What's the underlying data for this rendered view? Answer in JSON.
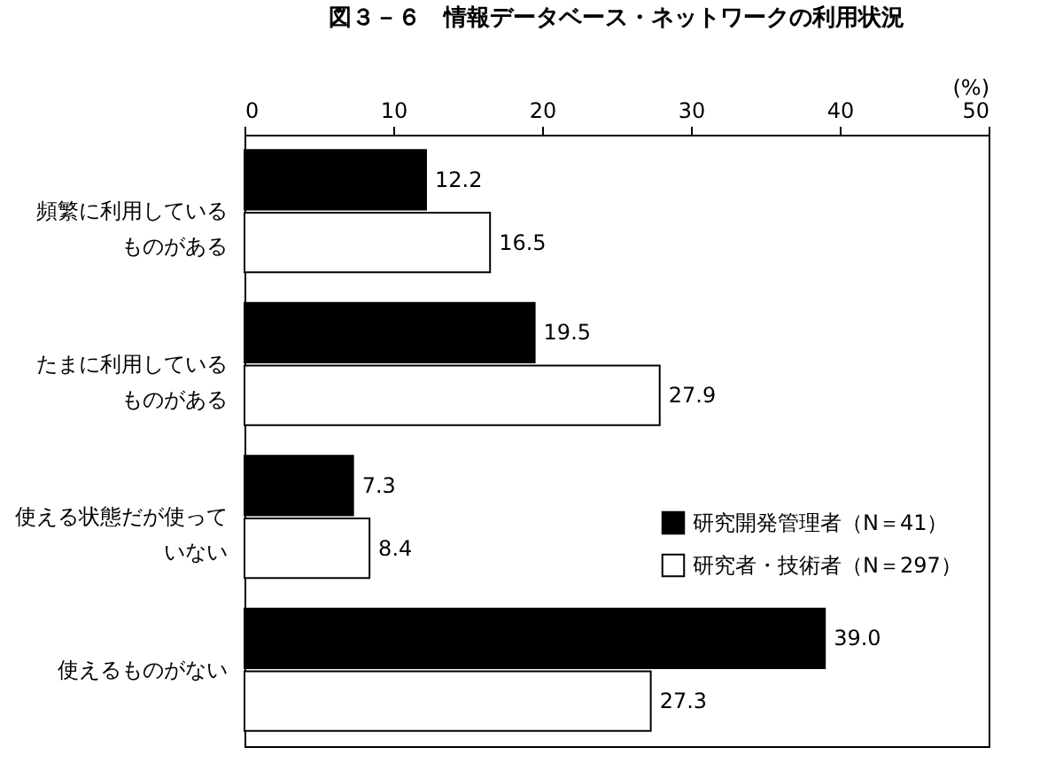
{
  "chart_data": {
    "type": "bar",
    "orientation": "horizontal",
    "title": "図３－６　情報データベース・ネットワークの利用状況",
    "xlabel": "(%)",
    "categories": [
      "頻繁に利用しているものがある",
      "たまに利用しているものがある",
      "使える状態だが使っていない",
      "使えるものがない"
    ],
    "series": [
      {
        "name": "研究開発管理者（N＝41）",
        "color": "#000000",
        "values": [
          12.2,
          19.5,
          7.3,
          39.0
        ],
        "value_labels": [
          "12.2",
          "19.5",
          "7.3",
          "39.0"
        ]
      },
      {
        "name": "研究者・技術者（N＝297）",
        "color": "#ffffff",
        "values": [
          16.5,
          27.9,
          8.4,
          27.3
        ],
        "value_labels": [
          "16.5",
          "27.9",
          "8.4",
          "27.3"
        ]
      }
    ],
    "xlim": [
      0,
      50
    ],
    "xticks": [
      0,
      10,
      20,
      30,
      40,
      50
    ],
    "legend": "right",
    "grid": false
  }
}
